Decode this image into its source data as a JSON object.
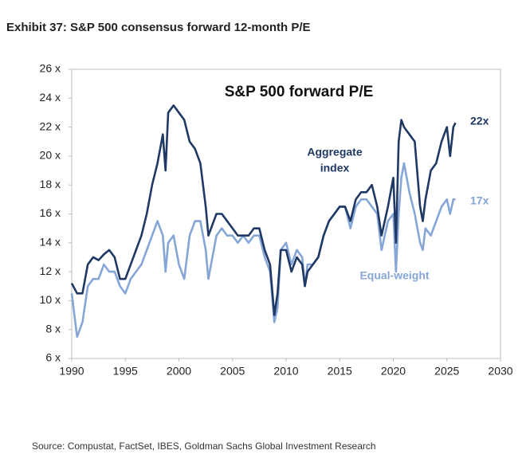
{
  "chart_data": {
    "type": "line",
    "title": "Exhibit 37: S&P 500 consensus forward 12-month P/E",
    "subtitle": "S&P 500 forward P/E",
    "source": "Source: Compustat, FactSet, IBES, Goldman Sachs Global Investment Research",
    "annotations": [
      "Aggregate",
      "index",
      "22x",
      "17x",
      "Equal-weight"
    ],
    "x": [
      1990,
      1990.5,
      1991,
      1991.5,
      1992,
      1992.5,
      1993,
      1993.5,
      1994,
      1994.5,
      1995,
      1995.5,
      1996,
      1996.5,
      1997,
      1997.5,
      1998,
      1998.5,
      1998.75,
      1999,
      1999.5,
      2000,
      2000.5,
      2001,
      2001.5,
      2002,
      2002.5,
      2002.75,
      2003,
      2003.5,
      2004,
      2004.5,
      2005,
      2005.5,
      2006,
      2006.5,
      2007,
      2007.5,
      2008,
      2008.5,
      2008.9,
      2009.2,
      2009.5,
      2010,
      2010.5,
      2011,
      2011.5,
      2011.75,
      2012,
      2012.5,
      2013,
      2013.5,
      2014,
      2014.5,
      2015,
      2015.5,
      2016,
      2016.5,
      2017,
      2017.5,
      2018,
      2018.5,
      2018.9,
      2019.5,
      2020,
      2020.25,
      2020.5,
      2020.75,
      2021,
      2021.5,
      2022,
      2022.5,
      2022.75,
      2023,
      2023.5,
      2024,
      2024.5,
      2025,
      2025.3,
      2025.6,
      2025.8
    ],
    "series": [
      {
        "name": "Aggregate index",
        "color": "#1f3864",
        "values": [
          11.2,
          10.5,
          10.5,
          12.5,
          13,
          12.8,
          13.2,
          13.5,
          13,
          11.5,
          11.5,
          12.5,
          13.5,
          14.5,
          16,
          18,
          19.5,
          21.5,
          19,
          23,
          23.5,
          23,
          22.5,
          21,
          20.5,
          19.5,
          16.5,
          14.5,
          15,
          16,
          16,
          15.5,
          15,
          14.5,
          14.5,
          14.5,
          15,
          15,
          13.5,
          12.5,
          9,
          10.5,
          13.5,
          13.5,
          12,
          13,
          12.5,
          11,
          12,
          12.5,
          13,
          14.5,
          15.5,
          16,
          16.5,
          16.5,
          15.5,
          17,
          17.5,
          17.5,
          18,
          16.5,
          14.5,
          16.5,
          18.5,
          14,
          21,
          22.5,
          22,
          21.5,
          21,
          16.5,
          15.5,
          17,
          19,
          19.5,
          21,
          22,
          20,
          22,
          22.3
        ]
      },
      {
        "name": "Equal-weight",
        "color": "#85a6d6",
        "values": [
          10.5,
          7.5,
          8.5,
          11,
          11.5,
          11.5,
          12.5,
          12,
          12,
          11,
          10.5,
          11.5,
          12,
          12.5,
          13.5,
          14.5,
          15.5,
          14.5,
          12,
          14,
          14.5,
          12.5,
          11.5,
          14.5,
          15.5,
          15.5,
          13.5,
          11.5,
          12.5,
          14.5,
          15,
          14.5,
          14.5,
          14,
          14.5,
          14,
          14.5,
          14.5,
          13,
          12,
          8.5,
          9.5,
          13.5,
          14,
          12.5,
          13.5,
          13,
          11,
          12.5,
          12.5,
          13,
          14.5,
          15.5,
          16,
          16.5,
          16.5,
          15,
          16.5,
          17,
          17,
          16.5,
          16,
          13.5,
          15.5,
          16,
          12,
          16,
          18.5,
          19.5,
          17.5,
          16,
          14,
          13.5,
          15,
          14.5,
          15.5,
          16.5,
          17,
          16,
          17,
          17
        ]
      }
    ],
    "xlim": [
      1990,
      2030
    ],
    "xticks": [
      1990,
      1995,
      2000,
      2005,
      2010,
      2015,
      2020,
      2025,
      2030
    ],
    "ylim": [
      6,
      26
    ],
    "yticks": [
      {
        "value": 6,
        "label": "6 x"
      },
      {
        "value": 8,
        "label": "8 x"
      },
      {
        "value": 10,
        "label": "10 x"
      },
      {
        "value": 12,
        "label": "12 x"
      },
      {
        "value": 14,
        "label": "14 x"
      },
      {
        "value": 16,
        "label": "16 x"
      },
      {
        "value": 18,
        "label": "18 x"
      },
      {
        "value": 20,
        "label": "20 x"
      },
      {
        "value": 22,
        "label": "22 x"
      },
      {
        "value": 24,
        "label": "24 x"
      },
      {
        "value": 26,
        "label": "26 x"
      }
    ],
    "grid": false
  }
}
